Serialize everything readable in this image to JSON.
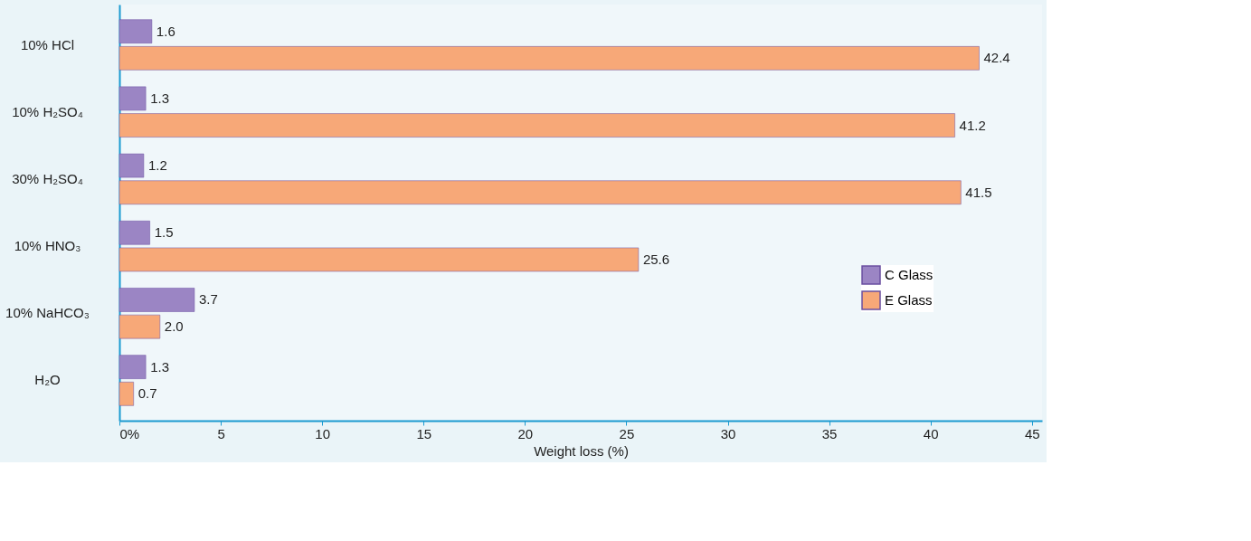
{
  "chart_data": {
    "type": "bar",
    "orientation": "horizontal",
    "xlabel": "Weight loss (%)",
    "categories": [
      "10% HCl",
      "10% H₂SO₄",
      "30% H₂SO₄",
      "10% HNO₃",
      "10% NaHCO₃",
      "H₂O"
    ],
    "series": [
      {
        "name": "C Glass",
        "color": "#9b85c4",
        "values": [
          1.6,
          1.3,
          1.2,
          1.5,
          3.7,
          1.3
        ]
      },
      {
        "name": "E Glass",
        "color": "#f7a878",
        "values": [
          42.4,
          41.2,
          41.5,
          25.6,
          2.0,
          0.7
        ]
      }
    ],
    "value_labels": [
      [
        "1.6",
        "1.3",
        "1.2",
        "1.5",
        "3.7",
        "1.3"
      ],
      [
        "42.4",
        "41.2",
        "41.5",
        "25.6",
        "2.0",
        "0.7"
      ]
    ],
    "xlim": [
      0,
      45.5
    ],
    "xticks": [
      {
        "value": 0,
        "label": "0%"
      },
      5,
      10,
      15,
      20,
      25,
      30,
      35,
      40,
      45
    ],
    "legend": "bottom right",
    "grid": false
  }
}
